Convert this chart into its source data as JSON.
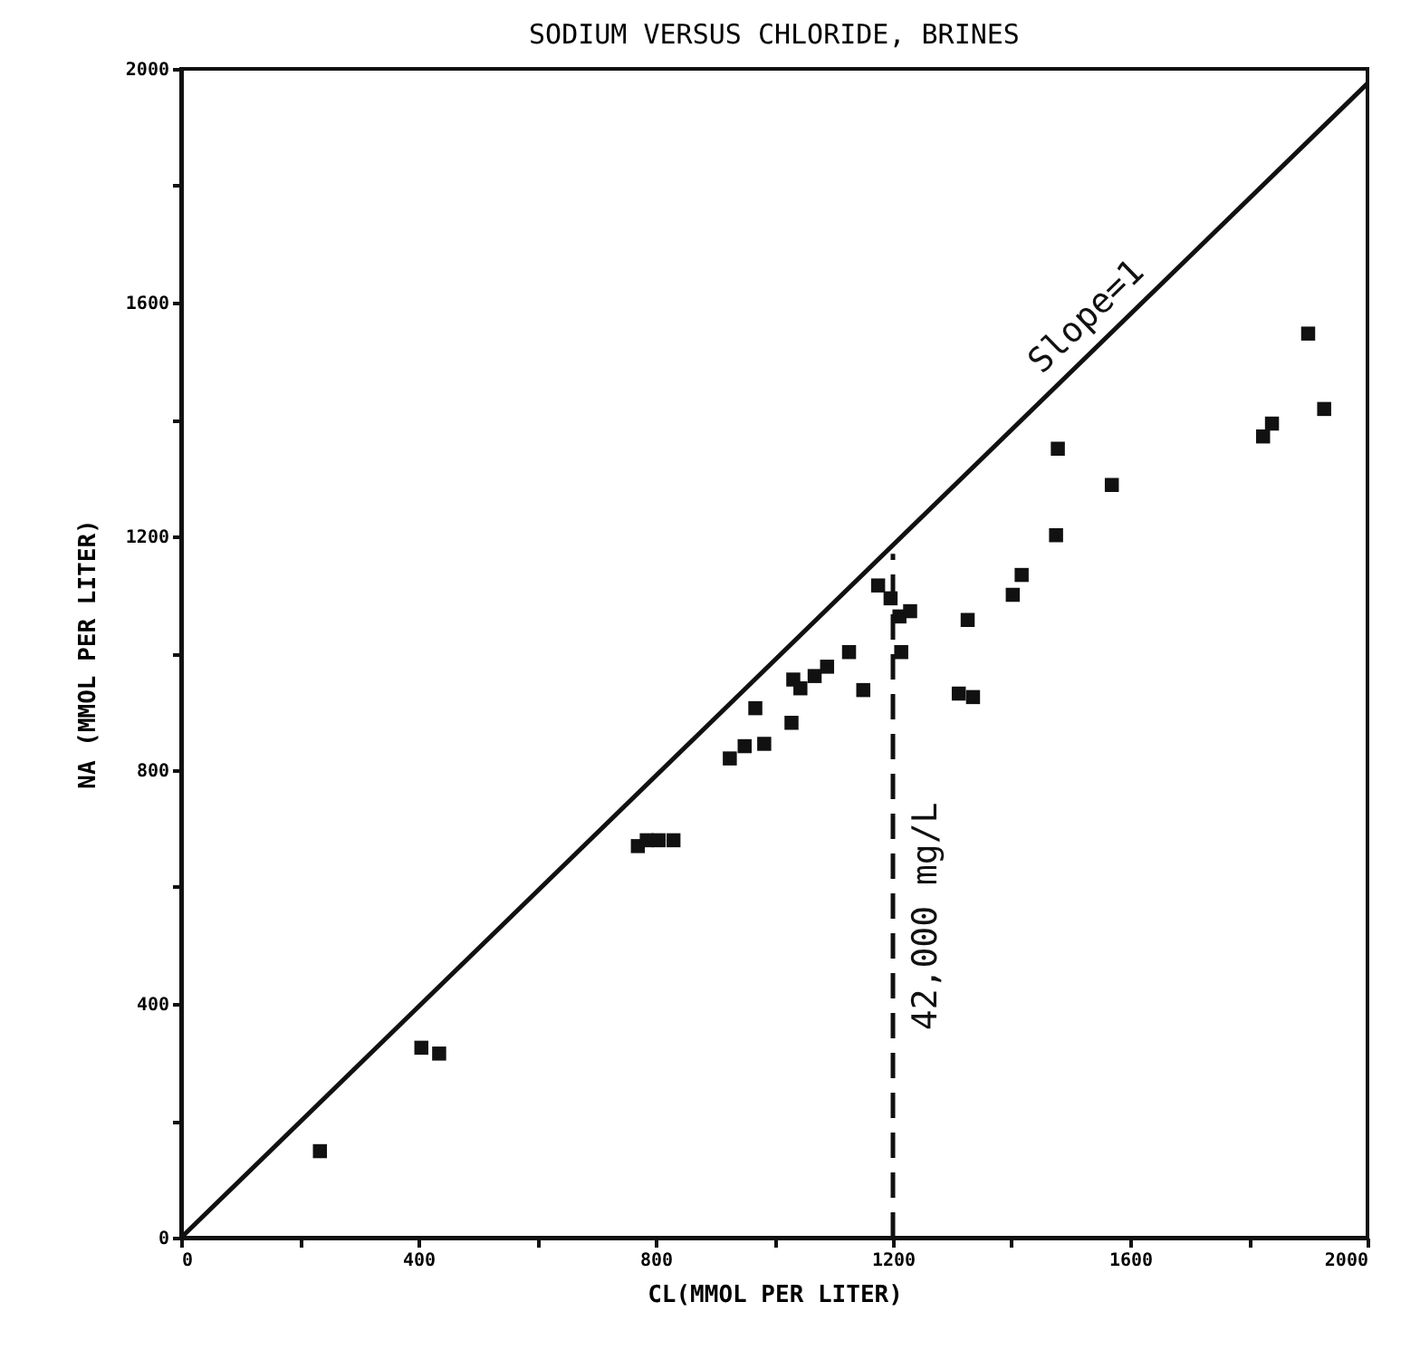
{
  "chart_data": {
    "type": "scatter",
    "title": "SODIUM VERSUS CHLORIDE, BRINES",
    "xlabel": "CL(MMOL PER LITER)",
    "ylabel": "NA (MMOL PER LITER)",
    "xlim": [
      0,
      2000
    ],
    "ylim": [
      0,
      2000
    ],
    "xticks": [
      0,
      {
        "value": 200,
        "label": null
      },
      400,
      {
        "value": 600,
        "label": null
      },
      800,
      {
        "value": 1000,
        "label": null
      },
      1200,
      {
        "value": 1400,
        "label": null
      },
      1600,
      {
        "value": 1800,
        "label": null
      },
      2000
    ],
    "yticks": [
      0,
      {
        "value": 200,
        "label": null
      },
      400,
      {
        "value": 600,
        "label": null
      },
      800,
      {
        "value": 1000,
        "label": null
      },
      1200,
      {
        "value": 1400,
        "label": null
      },
      1600,
      {
        "value": 1800,
        "label": null
      },
      2000
    ],
    "grid": false,
    "series": [
      {
        "marker": "square",
        "color": "#111111",
        "x": [
          234,
          405,
          435,
          770,
          785,
          805,
          830,
          925,
          950,
          983,
          968,
          1029,
          1032,
          1044,
          1068,
          1089,
          1126,
          1150,
          1175,
          1196,
          1211,
          1229,
          1214,
          1326,
          1311,
          1335,
          1402,
          1417,
          1475,
          1478,
          1569,
          1824,
          1839,
          1900,
          1927
        ],
        "values": [
          148,
          325,
          315,
          670,
          680,
          680,
          680,
          820,
          841,
          845,
          906,
          881,
          955,
          940,
          961,
          977,
          1002,
          937,
          1116,
          1094,
          1063,
          1072,
          1002,
          1057,
          931,
          925,
          1100,
          1134,
          1202,
          1350,
          1288,
          1371,
          1393,
          1547,
          1418
        ]
      },
      {
        "type": "line",
        "name": "Slope=1",
        "color": "#111111",
        "line_style": "solid",
        "x": [
          0,
          2000
        ],
        "values": [
          0,
          1975
        ]
      },
      {
        "type": "line",
        "name": "42,000 mg/L",
        "color": "#111111",
        "line_style": "dashed",
        "x": [
          1200,
          1200
        ],
        "values": [
          0,
          1170
        ]
      }
    ]
  }
}
